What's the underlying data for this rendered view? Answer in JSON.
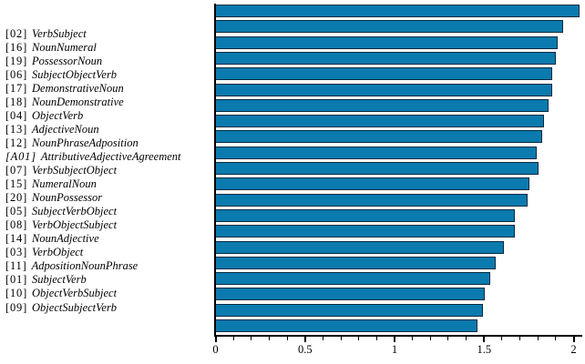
{
  "figure": {
    "background": "#ffffff",
    "text_color": "#000000",
    "axis_color": "#000000"
  },
  "chart_data": {
    "type": "bar",
    "orientation": "horizontal",
    "title": "",
    "xlabel": "",
    "ylabel": "",
    "xlim": [
      0,
      2.05
    ],
    "grid": false,
    "legend": false,
    "x_major_ticks": [
      0,
      0.5,
      1,
      1.5,
      2
    ],
    "x_major_tick_labels": [
      "0",
      "0.5",
      "1",
      "1.5",
      "2"
    ],
    "x_minor_tick_step": 0.1,
    "bar_fill_color": "#0b7aae",
    "bar_border_color": "#0a2a40",
    "categories": [
      "[02] VerbSubject",
      "[16] NounNumeral",
      "[19] PossessorNoun",
      "[06] SubjectObjectVerb",
      "[17] DemonstrativeNoun",
      "[18] NounDemonstrative",
      "[04] ObjectVerb",
      "[13] AdjectiveNoun",
      "[12] NounPhraseAdposition",
      "[A01] AttributiveAdjectiveAgreement",
      "[07] VerbSubjectObject",
      "[15] NumeralNoun",
      "[20] NounPossessor",
      "[05] SubjectVerbObject",
      "[08] VerbObjectSubject",
      "[14] NounAdjective",
      "[03] VerbObject",
      "[11] AdpositionNounPhrase",
      "[01] SubjectVerb",
      "[10] ObjectVerbSubject",
      "[09] ObjectSubjectVerb"
    ],
    "bars": [
      {
        "prefix": "[02]",
        "name": "VerbSubject",
        "value": 2.03
      },
      {
        "prefix": "[16]",
        "name": "NounNumeral",
        "value": 1.94
      },
      {
        "prefix": "[19]",
        "name": "PossessorNoun",
        "value": 1.91
      },
      {
        "prefix": "[06]",
        "name": "SubjectObjectVerb",
        "value": 1.9
      },
      {
        "prefix": "[17]",
        "name": "DemonstrativeNoun",
        "value": 1.88
      },
      {
        "prefix": "[18]",
        "name": "NounDemonstrative",
        "value": 1.88
      },
      {
        "prefix": "[04]",
        "name": "ObjectVerb",
        "value": 1.86
      },
      {
        "prefix": "[13]",
        "name": "AdjectiveNoun",
        "value": 1.83
      },
      {
        "prefix": "[12]",
        "name": "NounPhraseAdposition",
        "value": 1.82
      },
      {
        "prefix": "[A01]",
        "name": "AttributiveAdjectiveAgreement",
        "value": 1.79,
        "prefix_italic": true
      },
      {
        "prefix": "[07]",
        "name": "VerbSubjectObject",
        "value": 1.8
      },
      {
        "prefix": "[15]",
        "name": "NumeralNoun",
        "value": 1.75
      },
      {
        "prefix": "[20]",
        "name": "NounPossessor",
        "value": 1.74
      },
      {
        "prefix": "[05]",
        "name": "SubjectVerbObject",
        "value": 1.67
      },
      {
        "prefix": "[08]",
        "name": "VerbObjectSubject",
        "value": 1.67
      },
      {
        "prefix": "[14]",
        "name": "NounAdjective",
        "value": 1.61
      },
      {
        "prefix": "[03]",
        "name": "VerbObject",
        "value": 1.56
      },
      {
        "prefix": "[11]",
        "name": "AdpositionNounPhrase",
        "value": 1.53
      },
      {
        "prefix": "[01]",
        "name": "SubjectVerb",
        "value": 1.5
      },
      {
        "prefix": "[10]",
        "name": "ObjectVerbSubject",
        "value": 1.49
      },
      {
        "prefix": "[09]",
        "name": "ObjectSubjectVerb",
        "value": 1.46
      }
    ]
  }
}
